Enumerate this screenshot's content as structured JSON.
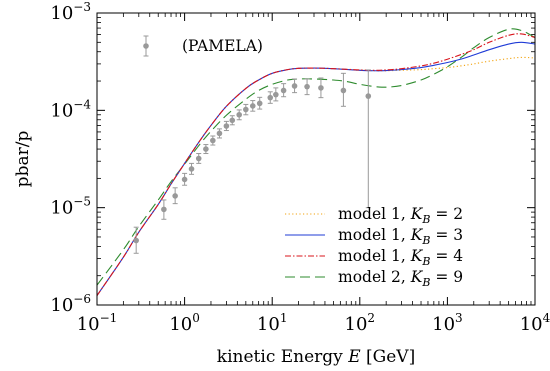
{
  "chart_data": {
    "type": "line",
    "xlabel": "kinetic Energy E [GeV]",
    "ylabel": "pbar/p",
    "x_scale": "log",
    "y_scale": "log",
    "xlim": [
      0.1,
      10000
    ],
    "ylim": [
      1e-06,
      0.001
    ],
    "grid": false,
    "legend_position": "lower-right",
    "x_ticks": [
      {
        "base": "10",
        "exp": "−1",
        "value": 0.1
      },
      {
        "base": "10",
        "exp": "0",
        "value": 1
      },
      {
        "base": "10",
        "exp": "1",
        "value": 10
      },
      {
        "base": "10",
        "exp": "2",
        "value": 100
      },
      {
        "base": "10",
        "exp": "3",
        "value": 1000
      },
      {
        "base": "10",
        "exp": "4",
        "value": 10000
      }
    ],
    "y_ticks": [
      {
        "base": "10",
        "exp": "−6",
        "value": 1e-06
      },
      {
        "base": "10",
        "exp": "−5",
        "value": 1e-05
      },
      {
        "base": "10",
        "exp": "−4",
        "value": 0.0001
      },
      {
        "base": "10",
        "exp": "−3",
        "value": 0.001
      }
    ],
    "data_series": {
      "name": "(PAMELA)",
      "color": "#999999",
      "points": [
        {
          "x": 0.28,
          "y": 4.6e-06,
          "lo": 3.4e-06,
          "hi": 6.3e-06
        },
        {
          "x": 0.58,
          "y": 9.6e-06,
          "lo": 7.6e-06,
          "hi": 1.2e-05
        },
        {
          "x": 0.78,
          "y": 1.32e-05,
          "lo": 1.1e-05,
          "hi": 1.6e-05
        },
        {
          "x": 1.0,
          "y": 1.95e-05,
          "lo": 1.7e-05,
          "hi": 2.25e-05
        },
        {
          "x": 1.2,
          "y": 2.5e-05,
          "lo": 2.2e-05,
          "hi": 2.85e-05
        },
        {
          "x": 1.45,
          "y": 3.2e-05,
          "lo": 2.85e-05,
          "hi": 3.6e-05
        },
        {
          "x": 1.75,
          "y": 4e-05,
          "lo": 3.6e-05,
          "hi": 4.45e-05
        },
        {
          "x": 2.1,
          "y": 4.9e-05,
          "lo": 4.4e-05,
          "hi": 5.45e-05
        },
        {
          "x": 2.5,
          "y": 5.8e-05,
          "lo": 5.2e-05,
          "hi": 6.45e-05
        },
        {
          "x": 3.0,
          "y": 6.9e-05,
          "lo": 6.2e-05,
          "hi": 7.7e-05
        },
        {
          "x": 3.5,
          "y": 7.9e-05,
          "lo": 7.1e-05,
          "hi": 8.8e-05
        },
        {
          "x": 4.2,
          "y": 9e-05,
          "lo": 8e-05,
          "hi": 0.000101
        },
        {
          "x": 5.0,
          "y": 0.000102,
          "lo": 9e-05,
          "hi": 0.000115
        },
        {
          "x": 6.0,
          "y": 0.000111,
          "lo": 9.8e-05,
          "hi": 0.000126
        },
        {
          "x": 7.2,
          "y": 0.000118,
          "lo": 0.000103,
          "hi": 0.000136
        },
        {
          "x": 9.5,
          "y": 0.000135,
          "lo": 0.000118,
          "hi": 0.000155
        },
        {
          "x": 11.0,
          "y": 0.000145,
          "lo": 0.000125,
          "hi": 0.00017
        },
        {
          "x": 13.5,
          "y": 0.00016,
          "lo": 0.000138,
          "hi": 0.000188
        },
        {
          "x": 18.0,
          "y": 0.000178,
          "lo": 0.000152,
          "hi": 0.00021
        },
        {
          "x": 25.0,
          "y": 0.000175,
          "lo": 0.000145,
          "hi": 0.00021
        },
        {
          "x": 36.0,
          "y": 0.00017,
          "lo": 0.000135,
          "hi": 0.000215
        },
        {
          "x": 65.0,
          "y": 0.00016,
          "lo": 0.00011,
          "hi": 0.00024
        },
        {
          "x": 125.0,
          "y": 0.00014,
          "lo": 1e-05,
          "hi": 0.00026
        }
      ]
    },
    "series": [
      {
        "name": "model 1, K_B = 2",
        "label_prefix": "model 1, ",
        "label_var": "K",
        "label_sub": "B",
        "label_value": " = 2",
        "color": "#f2a30f",
        "dash": "1.2,2.4",
        "x": [
          0.1,
          0.2,
          0.3,
          0.5,
          0.7,
          1,
          1.5,
          2,
          3,
          5,
          7,
          10,
          15,
          20,
          30,
          50,
          70,
          100,
          150,
          200,
          300,
          500,
          700,
          1000,
          1500,
          2000,
          3000,
          5000,
          7000,
          10000
        ],
        "y": [
          1.25e-06,
          3.1e-06,
          5.6e-06,
          1.08e-05,
          1.75e-05,
          2.85e-05,
          4.9e-05,
          7e-05,
          0.00011,
          0.000168,
          0.000205,
          0.00024,
          0.000262,
          0.00027,
          0.000272,
          0.000268,
          0.000263,
          0.000258,
          0.000255,
          0.000255,
          0.000258,
          0.000262,
          0.000268,
          0.000275,
          0.000288,
          0.0003,
          0.00032,
          0.00034,
          0.00035,
          0.000345
        ]
      },
      {
        "name": "model 1, K_B = 3",
        "label_prefix": "model 1, ",
        "label_var": "K",
        "label_sub": "B",
        "label_value": " = 3",
        "color": "#1f3bd6",
        "dash": "",
        "x": [
          0.1,
          0.2,
          0.3,
          0.5,
          0.7,
          1,
          1.5,
          2,
          3,
          5,
          7,
          10,
          15,
          20,
          30,
          50,
          70,
          100,
          150,
          200,
          300,
          500,
          700,
          1000,
          1500,
          2000,
          3000,
          5000,
          7000,
          10000
        ],
        "y": [
          1.25e-06,
          3.1e-06,
          5.6e-06,
          1.08e-05,
          1.75e-05,
          2.85e-05,
          4.9e-05,
          7e-05,
          0.00011,
          0.000168,
          0.000205,
          0.00024,
          0.000262,
          0.00027,
          0.000272,
          0.000268,
          0.000263,
          0.000258,
          0.000255,
          0.000256,
          0.000262,
          0.000275,
          0.00029,
          0.00031,
          0.00034,
          0.00037,
          0.00042,
          0.00048,
          0.0005,
          0.00048
        ]
      },
      {
        "name": "model 1, K_B = 4",
        "label_prefix": "model 1, ",
        "label_var": "K",
        "label_sub": "B",
        "label_value": " = 4",
        "color": "#d9141b",
        "dash": "6,2,1.5,2",
        "x": [
          0.1,
          0.2,
          0.3,
          0.5,
          0.7,
          1,
          1.5,
          2,
          3,
          5,
          7,
          10,
          15,
          20,
          30,
          50,
          70,
          100,
          150,
          200,
          300,
          500,
          700,
          1000,
          1500,
          2000,
          3000,
          5000,
          7000,
          10000
        ],
        "y": [
          1.25e-06,
          3.1e-06,
          5.6e-06,
          1.08e-05,
          1.75e-05,
          2.85e-05,
          4.9e-05,
          7e-05,
          0.00011,
          0.000168,
          0.000205,
          0.00024,
          0.000262,
          0.00027,
          0.000272,
          0.000268,
          0.000264,
          0.00026,
          0.000258,
          0.00026,
          0.000268,
          0.000286,
          0.000305,
          0.000335,
          0.00038,
          0.00042,
          0.0005,
          0.00059,
          0.00061,
          0.00056
        ]
      },
      {
        "name": "model 2, K_B = 9",
        "label_prefix": "model 2, ",
        "label_var": "K",
        "label_sub": "B",
        "label_value": " = 9",
        "color": "#2e8b2e",
        "dash": "10,5",
        "x": [
          0.1,
          0.2,
          0.3,
          0.5,
          0.7,
          1,
          1.5,
          2,
          3,
          5,
          7,
          10,
          15,
          20,
          30,
          50,
          70,
          100,
          150,
          200,
          300,
          500,
          700,
          1000,
          1500,
          2000,
          3000,
          5000,
          7000,
          10000
        ],
        "y": [
          1.6e-06,
          3.7e-06,
          6.4e-06,
          1.2e-05,
          1.85e-05,
          2.8e-05,
          4.5e-05,
          6.1e-05,
          8.9e-05,
          0.00013,
          0.00016,
          0.000185,
          0.000205,
          0.00021,
          0.00021,
          0.000205,
          0.000198,
          0.000185,
          0.000175,
          0.000173,
          0.00018,
          0.000205,
          0.000235,
          0.00028,
          0.00036,
          0.00044,
          0.00056,
          0.00068,
          0.00066,
          0.00056
        ]
      }
    ]
  }
}
